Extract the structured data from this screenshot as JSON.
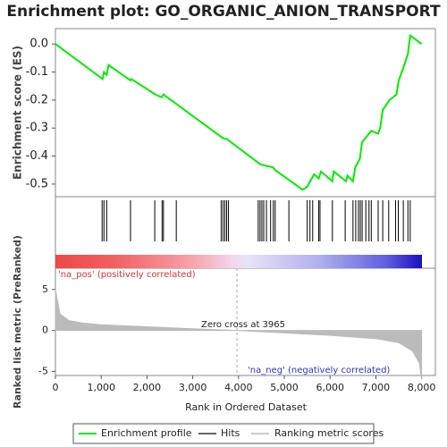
{
  "chart_data": {
    "type": "line",
    "title": "Enrichment plot: GO_ORGANIC_ANION_TRANSPORT",
    "x_label": "Rank in Ordered Dataset",
    "y_label": "Enrichment score (ES)",
    "y2_label": "Ranked list metric (PreRanked)",
    "xlim": [
      0,
      8300
    ],
    "xticks": [
      0,
      {
        "value": 1000,
        "label": "1,000"
      },
      {
        "value": 2000,
        "label": "2,000"
      },
      {
        "value": 3000,
        "label": "3,000"
      },
      {
        "value": 4000,
        "label": "4,000"
      },
      {
        "value": 5000,
        "label": "5,000"
      },
      {
        "value": 6000,
        "label": "6,000"
      },
      {
        "value": 7000,
        "label": "7,000"
      },
      {
        "value": 8000,
        "label": "8,000"
      }
    ],
    "ylim": [
      -0.545,
      0.055
    ],
    "yticks": [
      {
        "value": 0,
        "label": "0.0"
      },
      -0.1,
      -0.2,
      -0.3,
      -0.4,
      -0.5
    ],
    "y2lim": [
      -5.5,
      7.6
    ],
    "y2ticks": [
      5,
      0,
      -5
    ],
    "x": [
      0,
      1030,
      1060,
      1120,
      1160,
      1640,
      1660,
      2180,
      2320,
      2360,
      2650,
      3650,
      3750,
      4480,
      4750,
      4800,
      5400,
      5500,
      5600,
      5650,
      5750,
      5800,
      6050,
      6080,
      6350,
      6380,
      6500,
      6550,
      6650,
      6700,
      6900,
      7050,
      7100,
      7150,
      7300,
      7450,
      7500,
      7600,
      7700,
      7750,
      8000
    ],
    "series": [
      {
        "name": "Enrichment profile",
        "color": "#00ee00",
        "values": [
          0.0,
          -0.125,
          -0.1,
          -0.11,
          -0.075,
          -0.13,
          -0.125,
          -0.18,
          -0.19,
          -0.18,
          -0.215,
          -0.335,
          -0.34,
          -0.43,
          -0.44,
          -0.45,
          -0.52,
          -0.51,
          -0.48,
          -0.465,
          -0.48,
          -0.455,
          -0.49,
          -0.455,
          -0.49,
          -0.47,
          -0.49,
          -0.44,
          -0.41,
          -0.35,
          -0.31,
          -0.32,
          -0.295,
          -0.235,
          -0.2,
          -0.18,
          -0.13,
          -0.085,
          -0.035,
          0.03,
          0.0
        ]
      }
    ],
    "hits": {
      "name": "Hits",
      "color": "#000000",
      "x": [
        1020,
        1060,
        1120,
        1640,
        2170,
        2330,
        2360,
        2640,
        3620,
        3660,
        3700,
        3740,
        3780,
        4430,
        4470,
        4510,
        4550,
        4610,
        4700,
        4760,
        4800,
        5100,
        5500,
        5560,
        5620,
        5750,
        5780,
        6050,
        6330,
        6500,
        6560,
        6620,
        6660,
        6700,
        6780,
        6850,
        6900,
        7050,
        7150,
        7280,
        7430,
        7490,
        7600,
        7700,
        7750
      ]
    },
    "metric": {
      "name": "Ranking metric scores",
      "color": "#bbbbbb",
      "x": [
        0,
        100,
        300,
        600,
        1000,
        2000,
        3000,
        3965,
        5000,
        6000,
        7000,
        7500,
        7800,
        7950,
        8000
      ],
      "values": [
        5,
        2,
        1.2,
        0.9,
        0.7,
        0.45,
        0.2,
        0,
        -0.3,
        -0.6,
        -1.0,
        -1.5,
        -2.5,
        -4,
        -6
      ]
    },
    "annotations": [
      "'na_pos' (positively correlated)",
      "'na_neg' (negatively correlated)"
    ],
    "zero_cross": {
      "value": 3965,
      "label": "Zero cross at 3965"
    }
  }
}
